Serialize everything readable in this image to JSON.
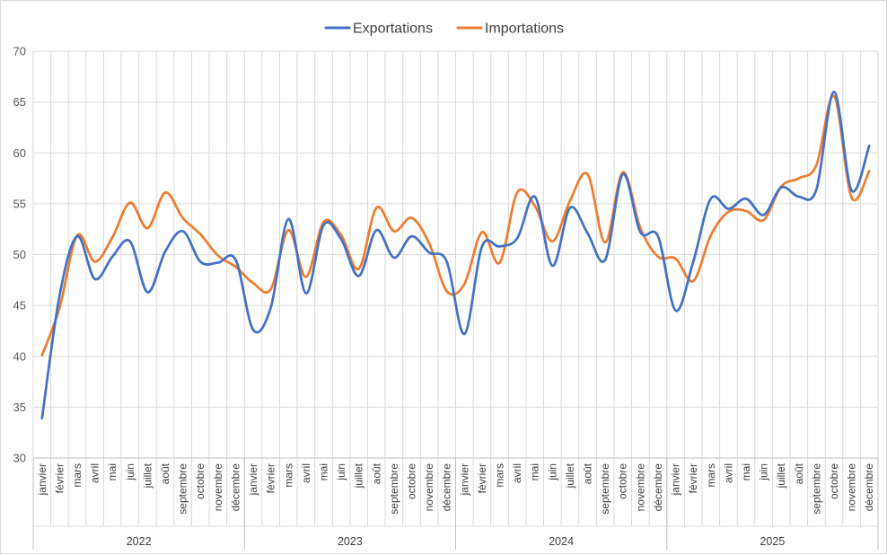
{
  "chart_data": {
    "type": "line",
    "title": "",
    "xlabel": "",
    "ylabel": "",
    "ylim": [
      30,
      70
    ],
    "yticks": [
      "30",
      "35",
      "40",
      "45",
      "50",
      "55",
      "60",
      "65",
      "70"
    ],
    "grid": true,
    "legend_position": "top",
    "years": [
      "2022",
      "2023",
      "2024",
      "2025"
    ],
    "months": [
      "janvier",
      "février",
      "mars",
      "avril",
      "mai",
      "juin",
      "juillet",
      "août",
      "septembre",
      "octobre",
      "novembre",
      "décembre"
    ],
    "series": [
      {
        "name": "Exportations",
        "color": "#4472C4",
        "values": [
          33.9,
          46.0,
          51.8,
          47.6,
          49.8,
          51.3,
          46.3,
          50.3,
          52.3,
          49.3,
          49.2,
          49.5,
          42.6,
          44.8,
          53.5,
          46.2,
          52.9,
          51.5,
          47.9,
          52.4,
          49.7,
          51.8,
          50.2,
          49.3,
          42.2,
          50.8,
          50.8,
          51.6,
          55.7,
          48.9,
          54.6,
          52.1,
          49.5,
          57.9,
          52.2,
          51.8,
          44.5,
          49.3,
          55.5,
          54.5,
          55.5,
          53.9,
          56.6,
          55.7,
          56.4,
          66.0,
          56.3,
          60.7
        ]
      },
      {
        "name": "Importations",
        "color": "#ED7D31",
        "values": [
          40.1,
          44.8,
          51.9,
          49.3,
          51.7,
          55.1,
          52.6,
          56.1,
          53.6,
          52.0,
          49.9,
          48.8,
          47.2,
          46.6,
          52.4,
          47.8,
          53.2,
          51.9,
          48.6,
          54.6,
          52.3,
          53.6,
          51.1,
          46.4,
          47.1,
          52.2,
          49.2,
          56.1,
          54.8,
          51.3,
          55.3,
          57.9,
          51.2,
          58.1,
          52.6,
          49.8,
          49.6,
          47.4,
          51.9,
          54.2,
          54.3,
          53.4,
          56.7,
          57.5,
          58.8,
          65.6,
          55.6,
          58.2
        ]
      }
    ]
  }
}
